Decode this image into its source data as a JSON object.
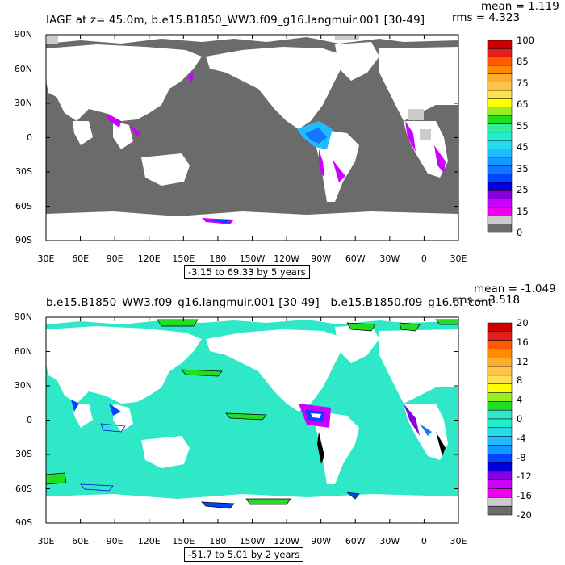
{
  "panels": [
    {
      "title": "IAGE at z=  45.0m, b.e15.B1850_WW3.f09_g16.langmuir.001 [30-49]",
      "mean_text": "mean = 1.119",
      "rms_text": "rms = 4.323",
      "range_text": "-3.15 to 69.33 by 5 years",
      "colorbar": {
        "labels": [
          "100",
          "85",
          "75",
          "65",
          "55",
          "45",
          "35",
          "25",
          "15",
          "0"
        ]
      }
    },
    {
      "title": "b.e15.B1850_WW3.f09_g16.langmuir.001 [30-49] - b.e15.B1850.f09_g16.pi_cont",
      "mean_text": "mean = -1.049",
      "rms_text": "rms = 3.518",
      "range_text": "-51.7 to 5.01 by 2 years",
      "colorbar": {
        "labels": [
          "20",
          "16",
          "12",
          "8",
          "4",
          "0",
          "-4",
          "-8",
          "-12",
          "-16",
          "-20"
        ]
      }
    }
  ],
  "axes": {
    "lat_labels": [
      "90N",
      "60N",
      "30N",
      "0",
      "30S",
      "60S",
      "90S"
    ],
    "lon_labels": [
      "30E",
      "60E",
      "90E",
      "120E",
      "150E",
      "180",
      "150W",
      "120W",
      "90W",
      "60W",
      "30W",
      "0",
      "30E"
    ]
  },
  "colors": {
    "land": "#ffffff",
    "top_ocean": "#6b6b6b",
    "bottom_ocean": "#2ee8c8",
    "top_colorbar": [
      "#cc0000",
      "#e41d1d",
      "#ff5a00",
      "#ff8c00",
      "#ffad2e",
      "#ffc34a",
      "#ffe14f",
      "#ffff00",
      "#99ee22",
      "#22dd22",
      "#33ee99",
      "#22eecc",
      "#22ddee",
      "#22bbff",
      "#1199ff",
      "#1177ff",
      "#0044ff",
      "#0000dd",
      "#8800dd",
      "#cc00ff",
      "#ee00ee",
      "#cccccc",
      "#6b6b6b"
    ],
    "bottom_colorbar": [
      "#cc0000",
      "#e41d1d",
      "#ff5a00",
      "#ff8c00",
      "#ffad2e",
      "#ffc34a",
      "#ffe14f",
      "#ffff00",
      "#99ee22",
      "#22dd22",
      "#2ee8c8",
      "#22eecc",
      "#22ddee",
      "#22bbff",
      "#1199ff",
      "#0044ff",
      "#0000dd",
      "#8800dd",
      "#cc00ff",
      "#ee00ee",
      "#cccccc",
      "#6b6b6b"
    ]
  }
}
